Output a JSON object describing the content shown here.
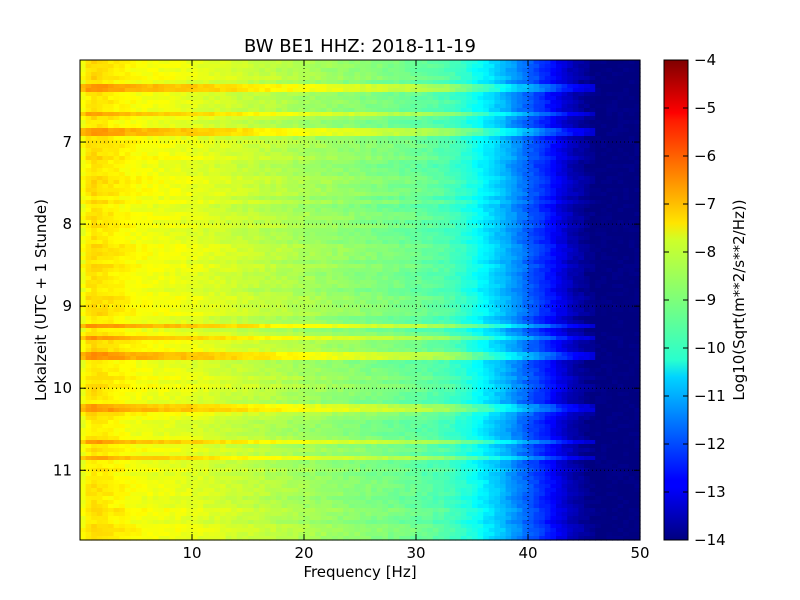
{
  "chart_data": {
    "type": "heatmap",
    "title": "BW BE1 HHZ: 2018-11-19",
    "xlabel": "Frequency [Hz]",
    "ylabel": "Lokalzeit (UTC + 1 Stunde)",
    "colorbar_label": "Log10(Sqrt(m**2/s**2/Hz))",
    "xlim": [
      0,
      50
    ],
    "ylim": [
      11.85,
      6.0
    ],
    "x_ticks": [
      10,
      20,
      30,
      40,
      50
    ],
    "y_ticks": [
      7,
      8,
      9,
      10,
      11
    ],
    "clim": [
      -14,
      -4
    ],
    "colorbar_ticks": [
      -4,
      -5,
      -6,
      -7,
      -8,
      -9,
      -10,
      -11,
      -12,
      -13,
      -14
    ],
    "colormap": "jet",
    "grid": true,
    "profile": {
      "frequency": [
        0,
        1,
        3,
        5,
        10,
        15,
        20,
        25,
        30,
        33,
        35,
        38,
        40,
        42,
        44,
        46,
        50
      ],
      "log10_amplitude": [
        -8.0,
        -7.4,
        -7.6,
        -7.8,
        -8.0,
        -8.3,
        -8.6,
        -8.9,
        -9.2,
        -9.5,
        -10.0,
        -11.0,
        -11.8,
        -12.6,
        -13.5,
        -14.0,
        -14.0
      ]
    },
    "high_noise_times": [
      6.35,
      6.65,
      6.88,
      9.25,
      9.38,
      9.6,
      10.25,
      10.65,
      10.85
    ]
  }
}
